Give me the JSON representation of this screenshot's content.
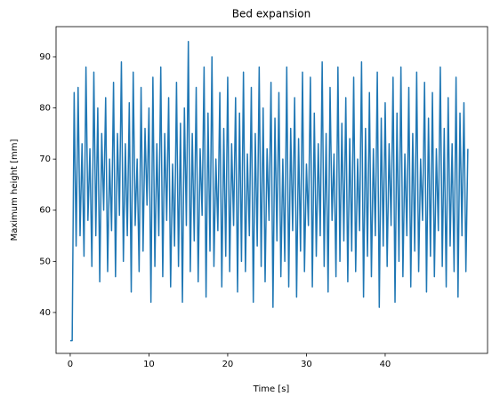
{
  "chart_data": {
    "type": "line",
    "title": "Bed expansion",
    "xlabel": "Time [s]",
    "ylabel": "Maximum height [mm]",
    "color": "#1f77b4",
    "x": [
      0,
      0.25,
      0.5,
      0.75,
      1,
      1.25,
      1.5,
      1.75,
      2,
      2.25,
      2.5,
      2.75,
      3,
      3.25,
      3.5,
      3.75,
      4,
      4.25,
      4.5,
      4.75,
      5,
      5.25,
      5.5,
      5.75,
      6,
      6.25,
      6.5,
      6.75,
      7,
      7.25,
      7.5,
      7.75,
      8,
      8.25,
      8.5,
      8.75,
      9,
      9.25,
      9.5,
      9.75,
      10,
      10.25,
      10.5,
      10.75,
      11,
      11.25,
      11.5,
      11.75,
      12,
      12.25,
      12.5,
      12.75,
      13,
      13.25,
      13.5,
      13.75,
      14,
      14.25,
      14.5,
      14.75,
      15,
      15.25,
      15.5,
      15.75,
      16,
      16.25,
      16.5,
      16.75,
      17,
      17.25,
      17.5,
      17.75,
      18,
      18.25,
      18.5,
      18.75,
      19,
      19.25,
      19.5,
      19.75,
      20,
      20.25,
      20.5,
      20.75,
      21,
      21.25,
      21.5,
      21.75,
      22,
      22.25,
      22.5,
      22.75,
      23,
      23.25,
      23.5,
      23.75,
      24,
      24.25,
      24.5,
      24.75,
      25,
      25.25,
      25.5,
      25.75,
      26,
      26.25,
      26.5,
      26.75,
      27,
      27.25,
      27.5,
      27.75,
      28,
      28.25,
      28.5,
      28.75,
      29,
      29.25,
      29.5,
      29.75,
      30,
      30.25,
      30.5,
      30.75,
      31,
      31.25,
      31.5,
      31.75,
      32,
      32.25,
      32.5,
      32.75,
      33,
      33.25,
      33.5,
      33.75,
      34,
      34.25,
      34.5,
      34.75,
      35,
      35.25,
      35.5,
      35.75,
      36,
      36.25,
      36.5,
      36.75,
      37,
      37.25,
      37.5,
      37.75,
      38,
      38.25,
      38.5,
      38.75,
      39,
      39.25,
      39.5,
      39.75,
      40,
      40.25,
      40.5,
      40.75,
      41,
      41.25,
      41.5,
      41.75,
      42,
      42.25,
      42.5,
      42.75,
      43,
      43.25,
      43.5,
      43.75,
      44,
      44.25,
      44.5,
      44.75,
      45,
      45.25,
      45.5,
      45.75,
      46,
      46.25,
      46.5,
      46.75,
      47,
      47.25,
      47.5,
      47.75,
      48,
      48.25,
      48.5,
      48.75,
      49,
      49.25,
      49.5,
      49.75,
      50,
      50.25,
      50.5
    ],
    "values": [
      34.5,
      34.5,
      83,
      53,
      84,
      55,
      73,
      51,
      88,
      58,
      72,
      49,
      87,
      55,
      80,
      46,
      75,
      60,
      82,
      48,
      70,
      56,
      85,
      47,
      75,
      59,
      89,
      50,
      73,
      55,
      81,
      44,
      87,
      57,
      70,
      48,
      84,
      52,
      76,
      61,
      80,
      42,
      86,
      49,
      73,
      55,
      88,
      47,
      75,
      58,
      82,
      45,
      69,
      53,
      85,
      49,
      77,
      42,
      80,
      57,
      93,
      48,
      75,
      54,
      84,
      46,
      72,
      59,
      88,
      43,
      79,
      52,
      90,
      49,
      70,
      56,
      83,
      45,
      76,
      51,
      86,
      48,
      73,
      57,
      82,
      44,
      79,
      50,
      87,
      48,
      71,
      55,
      84,
      42,
      75,
      53,
      88,
      49,
      80,
      46,
      72,
      58,
      85,
      41,
      78,
      54,
      83,
      47,
      70,
      50,
      88,
      45,
      76,
      56,
      82,
      43,
      74,
      52,
      87,
      48,
      69,
      57,
      86,
      45,
      79,
      51,
      73,
      55,
      89,
      49,
      75,
      44,
      84,
      58,
      71,
      47,
      88,
      50,
      77,
      54,
      82,
      46,
      74,
      52,
      86,
      48,
      70,
      56,
      89,
      43,
      76,
      51,
      83,
      47,
      72,
      55,
      87,
      41,
      78,
      53,
      81,
      49,
      73,
      57,
      86,
      42,
      79,
      50,
      88,
      47,
      71,
      55,
      84,
      45,
      75,
      52,
      87,
      48,
      70,
      58,
      85,
      44,
      78,
      51,
      83,
      47,
      72,
      56,
      88,
      49,
      76,
      45,
      82,
      53,
      73,
      48,
      86,
      43,
      79,
      55,
      81,
      48,
      72
    ],
    "xlim": [
      -1.8,
      53
    ],
    "xticks": [
      0,
      10,
      20,
      30,
      40
    ],
    "ylim": [
      32,
      95.9
    ],
    "yticks": [
      40,
      50,
      60,
      70,
      80,
      90
    ]
  }
}
